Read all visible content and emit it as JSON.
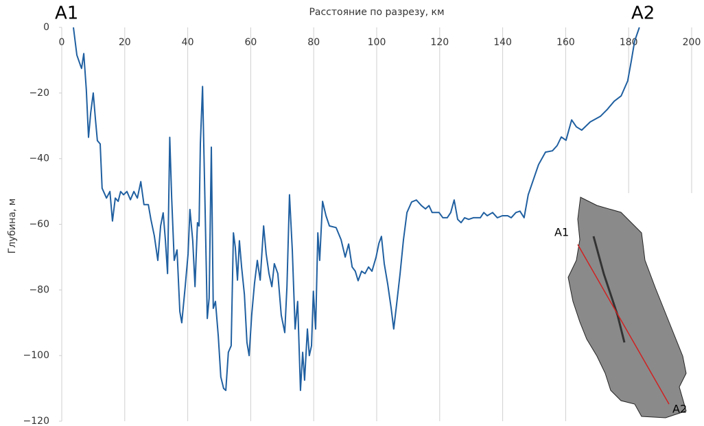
{
  "chart_data": {
    "type": "line",
    "xlabel": "Расстояние по разрезу, км",
    "ylabel": "Глубина, м",
    "annotations": [
      "A1",
      "A2"
    ],
    "inset_labels": [
      "A1",
      "A2"
    ],
    "color": "#1f5fa0",
    "grid": "x",
    "xlim": [
      0,
      200
    ],
    "xticks": [
      0,
      20,
      40,
      60,
      80,
      100,
      120,
      140,
      160,
      180,
      200
    ],
    "ylim": [
      -120,
      0
    ],
    "yticks": [
      {
        "value": 0,
        "label": "0"
      },
      {
        "value": -20,
        "label": "−20"
      },
      {
        "value": -40,
        "label": "−40"
      },
      {
        "value": -60,
        "label": "−60"
      },
      {
        "value": -80,
        "label": "−80"
      },
      {
        "value": -100,
        "label": "−100"
      },
      {
        "value": -120,
        "label": "−120"
      }
    ],
    "x": [
      3.7,
      4.8,
      5.9,
      6.3,
      7,
      7.8,
      8.5,
      9.2,
      10,
      10.7,
      11.3,
      12.2,
      12.8,
      14.2,
      15.3,
      16.1,
      17,
      17.9,
      18.7,
      19.6,
      20.7,
      21.8,
      22.9,
      24,
      25.1,
      26.1,
      27.5,
      28.3,
      29.4,
      30.5,
      31.4,
      32.2,
      32.9,
      33.6,
      34.3,
      34.9,
      35.7,
      36.6,
      37.5,
      38.1,
      39.2,
      40.1,
      40.7,
      41.6,
      42.3,
      43.1,
      43.6,
      44,
      44.7,
      45.5,
      46.2,
      46.8,
      47.5,
      48.1,
      48.8,
      49.7,
      50.5,
      51.4,
      52.1,
      52.9,
      53.8,
      54.5,
      55.1,
      55.8,
      56.4,
      57.1,
      58,
      58.8,
      59.5,
      60.3,
      61.2,
      62.1,
      63,
      64.1,
      64.9,
      65.8,
      66.7,
      67.5,
      68.6,
      69.7,
      70.8,
      71.5,
      72.3,
      73.2,
      74.1,
      74.9,
      75.8,
      76.5,
      77.1,
      78,
      78.6,
      79.3,
      79.9,
      80.6,
      81.3,
      81.9,
      82.8,
      83.9,
      85,
      87.1,
      88.7,
      90,
      91.1,
      92.2,
      93.2,
      94.1,
      95.2,
      96.3,
      97.4,
      98.5,
      99.8,
      100.7,
      101.5,
      102.4,
      103.5,
      104.6,
      105.4,
      106.3,
      107.4,
      108.5,
      109.6,
      111.1,
      112.6,
      114.2,
      115.5,
      116.6,
      117.6,
      119.8,
      121,
      122.4,
      123.5,
      124.6,
      125.7,
      126.8,
      127.9,
      129.2,
      130.7,
      132.9,
      134,
      135.1,
      136.8,
      138.3,
      139.9,
      141.6,
      142.7,
      144.2,
      145.5,
      146.8,
      148.1,
      149.9,
      151.4,
      153.6,
      155.8,
      157.3,
      158.6,
      160.1,
      161.9,
      163.4,
      165.1,
      167.8,
      171,
      173.2,
      175.4,
      177.6,
      179.7,
      180.8,
      181.9,
      183.4
    ],
    "values": [
      0,
      -8.4,
      -11.5,
      -12.5,
      -8,
      -19,
      -33.5,
      -26,
      -20,
      -28,
      -34.5,
      -35.5,
      -49,
      -52,
      -50,
      -59,
      -52,
      -53,
      -50,
      -51,
      -50,
      -52.5,
      -50,
      -52,
      -47,
      -54,
      -54,
      -58.5,
      -63.5,
      -71,
      -60.5,
      -56.5,
      -64.7,
      -75,
      -33.5,
      -52,
      -71,
      -67.8,
      -86.6,
      -90,
      -79,
      -69,
      -55.5,
      -65,
      -79,
      -59.5,
      -60.5,
      -35.5,
      -18,
      -54,
      -88.7,
      -82.5,
      -36.5,
      -85.6,
      -83.5,
      -94,
      -106.5,
      -110,
      -110.6,
      -99,
      -97,
      -62.6,
      -67,
      -77,
      -65,
      -73,
      -81.4,
      -96,
      -100,
      -87.7,
      -78,
      -71,
      -77,
      -60.5,
      -69,
      -75,
      -79,
      -72,
      -75,
      -87.7,
      -93,
      -79,
      -51,
      -67.8,
      -91.9,
      -83.5,
      -110.6,
      -99,
      -107.5,
      -91.9,
      -100,
      -97,
      -80.4,
      -91.9,
      -62.6,
      -71,
      -53,
      -57.4,
      -60.5,
      -61,
      -64.7,
      -70,
      -66,
      -73,
      -74.3,
      -77.2,
      -74.3,
      -75,
      -73,
      -74.3,
      -70,
      -65.8,
      -63.7,
      -72,
      -78.3,
      -85.6,
      -91.9,
      -84.6,
      -75.2,
      -64.7,
      -56.4,
      -53.2,
      -52.6,
      -54.3,
      -55.3,
      -54.3,
      -56.4,
      -56.4,
      -58,
      -58,
      -56.4,
      -52.6,
      -58.5,
      -59.5,
      -58,
      -58.5,
      -58,
      -58,
      -56.4,
      -57.4,
      -56.4,
      -58,
      -57.4,
      -57.4,
      -58,
      -56.4,
      -56,
      -58,
      -51,
      -46,
      -41.8,
      -38,
      -37.6,
      -36,
      -33.4,
      -34.4,
      -28.2,
      -30.3,
      -31.3,
      -28.8,
      -27.1,
      -25,
      -22.5,
      -20.9,
      -16.3,
      -10.4,
      -4.2,
      0
    ]
  }
}
